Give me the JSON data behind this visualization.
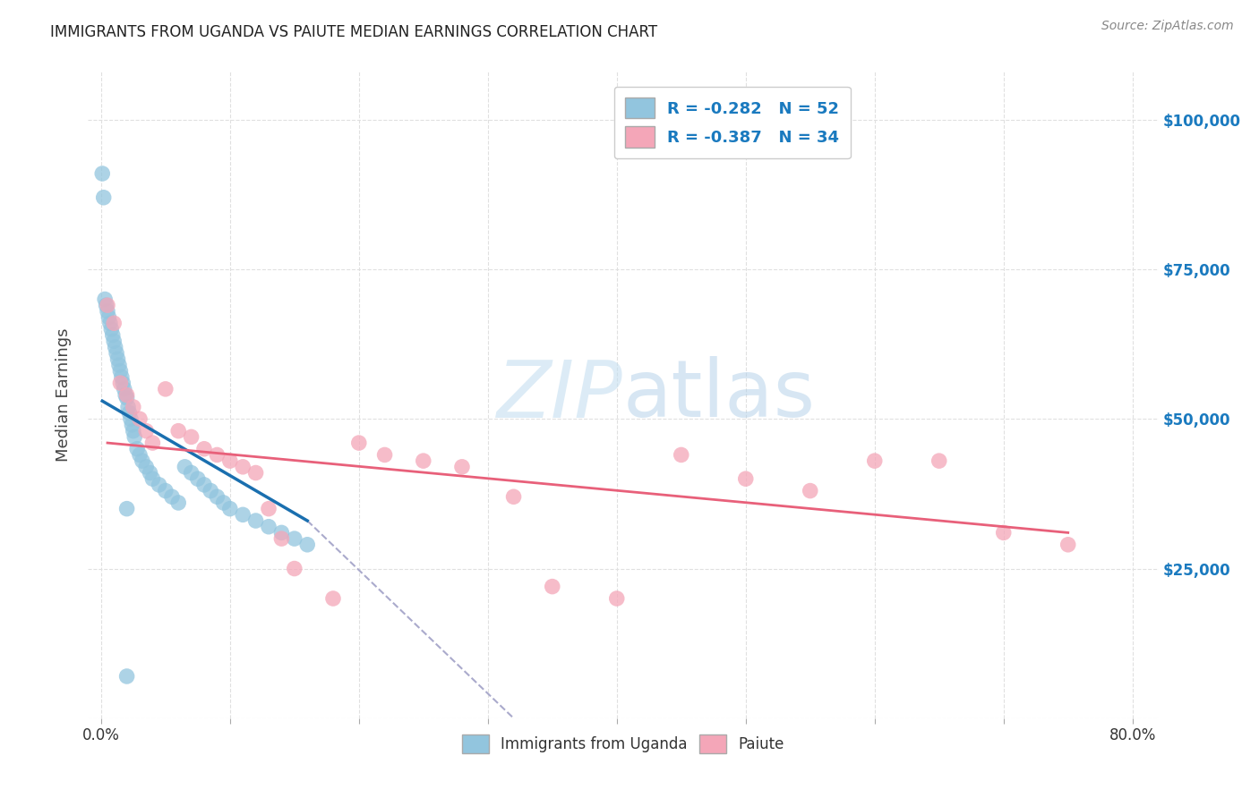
{
  "title": "IMMIGRANTS FROM UGANDA VS PAIUTE MEDIAN EARNINGS CORRELATION CHART",
  "source": "Source: ZipAtlas.com",
  "ylabel": "Median Earnings",
  "right_yticks": [
    25000,
    50000,
    75000,
    100000
  ],
  "right_ytick_labels": [
    "$25,000",
    "$50,000",
    "$75,000",
    "$100,000"
  ],
  "legend1_label": "R = -0.282   N = 52",
  "legend2_label": "R = -0.387   N = 34",
  "legend_bottom1": "Immigrants from Uganda",
  "legend_bottom2": "Paiute",
  "color_blue": "#92c5de",
  "color_pink": "#f4a6b8",
  "color_blue_dark": "#1a6faf",
  "color_pink_dark": "#e8607a",
  "color_legend_text": "#1a7abf",
  "watermark_color": "#dceef8",
  "uganda_x": [
    0.1,
    0.2,
    0.3,
    0.4,
    0.5,
    0.6,
    0.7,
    0.8,
    0.9,
    1.0,
    1.1,
    1.2,
    1.3,
    1.4,
    1.5,
    1.6,
    1.7,
    1.8,
    1.9,
    2.0,
    2.1,
    2.2,
    2.3,
    2.4,
    2.5,
    2.6,
    2.8,
    3.0,
    3.2,
    3.5,
    3.8,
    4.0,
    4.5,
    5.0,
    5.5,
    6.0,
    6.5,
    7.0,
    7.5,
    8.0,
    8.5,
    9.0,
    9.5,
    10.0,
    11.0,
    12.0,
    13.0,
    14.0,
    15.0,
    16.0,
    2.0,
    2.0
  ],
  "uganda_y": [
    91000,
    87000,
    70000,
    69000,
    68000,
    67000,
    66000,
    65000,
    64000,
    63000,
    62000,
    61000,
    60000,
    59000,
    58000,
    57000,
    56000,
    55000,
    54000,
    53500,
    52000,
    51000,
    50000,
    49000,
    48000,
    47000,
    45000,
    44000,
    43000,
    42000,
    41000,
    40000,
    39000,
    38000,
    37000,
    36000,
    42000,
    41000,
    40000,
    39000,
    38000,
    37000,
    36000,
    35000,
    34000,
    33000,
    32000,
    31000,
    30000,
    29000,
    35000,
    7000
  ],
  "paiute_x": [
    0.5,
    1.0,
    1.5,
    2.0,
    2.5,
    3.0,
    3.5,
    4.0,
    5.0,
    6.0,
    7.0,
    8.0,
    9.0,
    10.0,
    11.0,
    12.0,
    13.0,
    14.0,
    15.0,
    18.0,
    20.0,
    22.0,
    25.0,
    28.0,
    32.0,
    35.0,
    40.0,
    45.0,
    50.0,
    55.0,
    60.0,
    65.0,
    70.0,
    75.0
  ],
  "paiute_y": [
    69000,
    66000,
    56000,
    54000,
    52000,
    50000,
    48000,
    46000,
    55000,
    48000,
    47000,
    45000,
    44000,
    43000,
    42000,
    41000,
    35000,
    30000,
    25000,
    20000,
    46000,
    44000,
    43000,
    42000,
    37000,
    22000,
    20000,
    44000,
    40000,
    38000,
    43000,
    43000,
    31000,
    29000
  ],
  "xlim": [
    -1,
    82
  ],
  "ylim": [
    0,
    108000
  ],
  "blue_line_xstart": 0.1,
  "blue_line_xend": 16.0,
  "blue_line_ystart": 53000,
  "blue_line_yend": 33000,
  "dash_line_xstart": 16.0,
  "dash_line_xend": 32.0,
  "dash_line_ystart": 33000,
  "dash_line_yend": 0,
  "pink_line_xstart": 0.5,
  "pink_line_xend": 75.0,
  "pink_line_ystart": 46000,
  "pink_line_yend": 31000,
  "background_color": "#ffffff",
  "grid_color": "#e0e0e0"
}
